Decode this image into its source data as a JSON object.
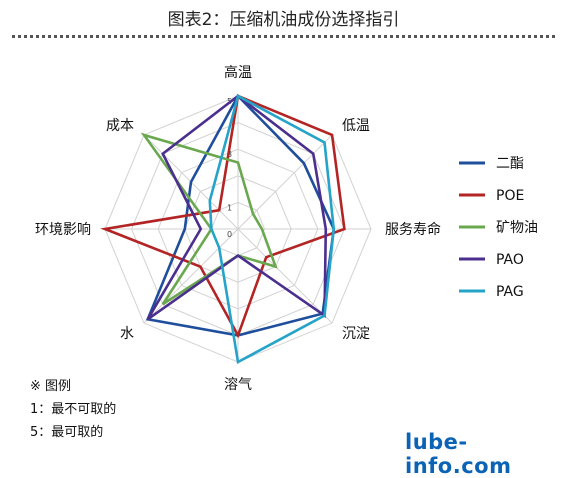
{
  "title": "图表2：压缩机油成份选择指引",
  "notes": [
    "※ 图例",
    "1：最不可取的",
    "5：最可取的"
  ],
  "watermark": "lube-info.com",
  "chart_data": {
    "type": "radar",
    "title": "图表2：压缩机油成份选择指引",
    "axes": [
      "高温",
      "低温",
      "服务寿命",
      "沉淀",
      "溶气",
      "水",
      "环境影响",
      "成本"
    ],
    "tick_labels": [
      "0",
      "1",
      "3",
      "5"
    ],
    "range": [
      0,
      5
    ],
    "grid": true,
    "legend_position": "right",
    "series": [
      {
        "name": "二酯",
        "color": "#1f4e9c",
        "values": [
          5.0,
          3.5,
          3.6,
          4.5,
          4.0,
          4.8,
          2.0,
          2.5
        ]
      },
      {
        "name": "POE",
        "color": "#b32424",
        "values": [
          5.0,
          5.0,
          4.0,
          1.5,
          4.0,
          2.0,
          5.0,
          1.0
        ]
      },
      {
        "name": "矿物油",
        "color": "#6aa84f",
        "values": [
          2.5,
          0.8,
          0.9,
          2.0,
          1.0,
          4.0,
          1.0,
          5.0
        ]
      },
      {
        "name": "PAO",
        "color": "#4b2f8f",
        "values": [
          5.0,
          4.0,
          3.3,
          4.6,
          1.0,
          4.8,
          1.4,
          4.0
        ]
      },
      {
        "name": "PAG",
        "color": "#25a3c8",
        "values": [
          5.0,
          4.6,
          3.6,
          4.6,
          5.0,
          1.0,
          1.0,
          1.5
        ]
      }
    ]
  }
}
